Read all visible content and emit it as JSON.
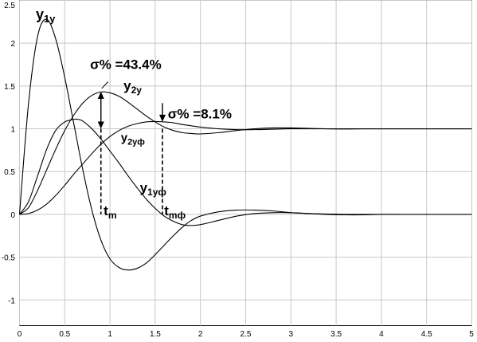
{
  "chart_data": {
    "type": "line",
    "xlim": [
      0,
      5
    ],
    "ylim": [
      -1.3,
      2.5
    ],
    "grid": true,
    "x_ticks": [
      {
        "value": 0,
        "label": "0"
      },
      {
        "value": 0.5,
        "label": "0.5"
      },
      {
        "value": 1,
        "label": "1"
      },
      {
        "value": 1.5,
        "label": "1.5"
      },
      {
        "value": 2,
        "label": "2"
      },
      {
        "value": 2.5,
        "label": "2.5"
      },
      {
        "value": 3,
        "label": "3"
      },
      {
        "value": 3.5,
        "label": "3.5"
      },
      {
        "value": 4,
        "label": "4"
      },
      {
        "value": 4.5,
        "label": "4.5"
      },
      {
        "value": 5,
        "label": "5"
      }
    ],
    "y_ticks": [
      {
        "value": 2.5,
        "label": "2.5"
      },
      {
        "value": 2,
        "label": "2"
      },
      {
        "value": 1.5,
        "label": "1.5"
      },
      {
        "value": 1,
        "label": "1"
      },
      {
        "value": 0.5,
        "label": "0.5"
      },
      {
        "value": 0,
        "label": "0"
      },
      {
        "value": -0.5,
        "label": "-0.5"
      },
      {
        "value": -1,
        "label": "-1"
      }
    ],
    "series": [
      {
        "name": "y1y",
        "x": [
          0,
          0.1,
          0.2,
          0.3,
          0.4,
          0.5,
          0.6,
          0.7,
          0.8,
          0.9,
          1.0,
          1.1,
          1.2,
          1.3,
          1.4,
          1.5,
          1.6,
          1.7,
          1.8,
          1.9,
          2.0,
          2.2,
          2.4,
          2.6,
          2.8,
          3.0,
          3.2,
          3.4,
          3.6,
          3.8,
          4.0,
          4.2,
          4.5,
          5.0
        ],
        "y": [
          0,
          1.3,
          2.08,
          2.28,
          2.05,
          1.6,
          1.06,
          0.52,
          0.05,
          -0.3,
          -0.52,
          -0.62,
          -0.65,
          -0.63,
          -0.57,
          -0.47,
          -0.36,
          -0.25,
          -0.15,
          -0.07,
          -0.02,
          0.03,
          0.05,
          0.05,
          0.04,
          0.02,
          0.01,
          0.0,
          -0.005,
          -0.005,
          0.0,
          0.0,
          0.0,
          0.0
        ]
      },
      {
        "name": "y2y",
        "x": [
          0,
          0.1,
          0.2,
          0.3,
          0.4,
          0.5,
          0.6,
          0.7,
          0.8,
          0.9,
          1.0,
          1.1,
          1.2,
          1.3,
          1.4,
          1.5,
          1.6,
          1.7,
          1.8,
          1.9,
          2.0,
          2.2,
          2.4,
          2.6,
          2.8,
          3.0,
          3.2,
          3.4,
          3.6,
          3.8,
          4.0,
          4.5,
          5.0
        ],
        "y": [
          0,
          0.08,
          0.28,
          0.52,
          0.76,
          0.98,
          1.16,
          1.3,
          1.39,
          1.43,
          1.42,
          1.38,
          1.31,
          1.23,
          1.15,
          1.08,
          1.02,
          0.98,
          0.955,
          0.945,
          0.94,
          0.955,
          0.98,
          1.0,
          1.01,
          1.01,
          1.005,
          1.0,
          0.998,
          1.0,
          1.0,
          1.0,
          1.0
        ]
      },
      {
        "name": "y1yф",
        "x": [
          0,
          0.1,
          0.2,
          0.3,
          0.4,
          0.5,
          0.6,
          0.65,
          0.7,
          0.8,
          0.9,
          1.0,
          1.1,
          1.2,
          1.3,
          1.4,
          1.5,
          1.6,
          1.7,
          1.8,
          1.9,
          2.0,
          2.2,
          2.4,
          2.6,
          2.8,
          3.0,
          3.2,
          3.4,
          3.6,
          3.8,
          4.0,
          4.2
        ],
        "y": [
          0,
          0.15,
          0.45,
          0.76,
          0.98,
          1.08,
          1.11,
          1.11,
          1.09,
          1.0,
          0.88,
          0.74,
          0.6,
          0.45,
          0.31,
          0.18,
          0.07,
          -0.02,
          -0.08,
          -0.12,
          -0.13,
          -0.12,
          -0.07,
          -0.02,
          0.01,
          0.02,
          0.02,
          0.01,
          0.005,
          0.0,
          0.0,
          0.0,
          0.0
        ]
      },
      {
        "name": "y2yф",
        "x": [
          0,
          0.1,
          0.2,
          0.3,
          0.4,
          0.5,
          0.6,
          0.7,
          0.8,
          0.9,
          1.0,
          1.1,
          1.2,
          1.3,
          1.4,
          1.5,
          1.6,
          1.7,
          1.8,
          1.9,
          2.0,
          2.2,
          2.4,
          2.6,
          2.8,
          3.0,
          3.5,
          4.0,
          4.5,
          5.0
        ],
        "y": [
          0,
          0.01,
          0.05,
          0.12,
          0.22,
          0.34,
          0.47,
          0.59,
          0.71,
          0.82,
          0.91,
          0.98,
          1.03,
          1.06,
          1.08,
          1.085,
          1.08,
          1.07,
          1.05,
          1.035,
          1.02,
          1.0,
          0.99,
          0.99,
          0.995,
          1.0,
          1.0,
          1.0,
          1.0,
          1.0
        ]
      }
    ],
    "curve_labels": [
      {
        "main": "y",
        "sub": "1y",
        "x": 0.18,
        "y": 2.28,
        "size": 18
      },
      {
        "main": "y",
        "sub": "2y",
        "x": 1.15,
        "y": 1.45,
        "size": 17
      },
      {
        "main": "y",
        "sub": "2yф",
        "x": 1.12,
        "y": 0.85,
        "size": 15
      },
      {
        "main": "y",
        "sub": "1yф",
        "x": 1.33,
        "y": 0.26,
        "size": 17
      }
    ],
    "annotations": {
      "overshoot_1": {
        "text": "σ% =43.4%",
        "x": 0.78,
        "y": 1.7
      },
      "overshoot_2": {
        "text": "σ% =8.1%",
        "x": 1.64,
        "y": 1.12
      },
      "tm": {
        "main": "t",
        "sub": "m",
        "x": 0.93,
        "y": -0.01
      },
      "tmf": {
        "main": "t",
        "sub": "mф",
        "x": 1.6,
        "y": -0.01
      }
    },
    "markers": {
      "tm_x": 0.9,
      "tmf_x": 1.58,
      "peak_y2y": 1.434,
      "peak_y2yf": 1.081
    }
  }
}
